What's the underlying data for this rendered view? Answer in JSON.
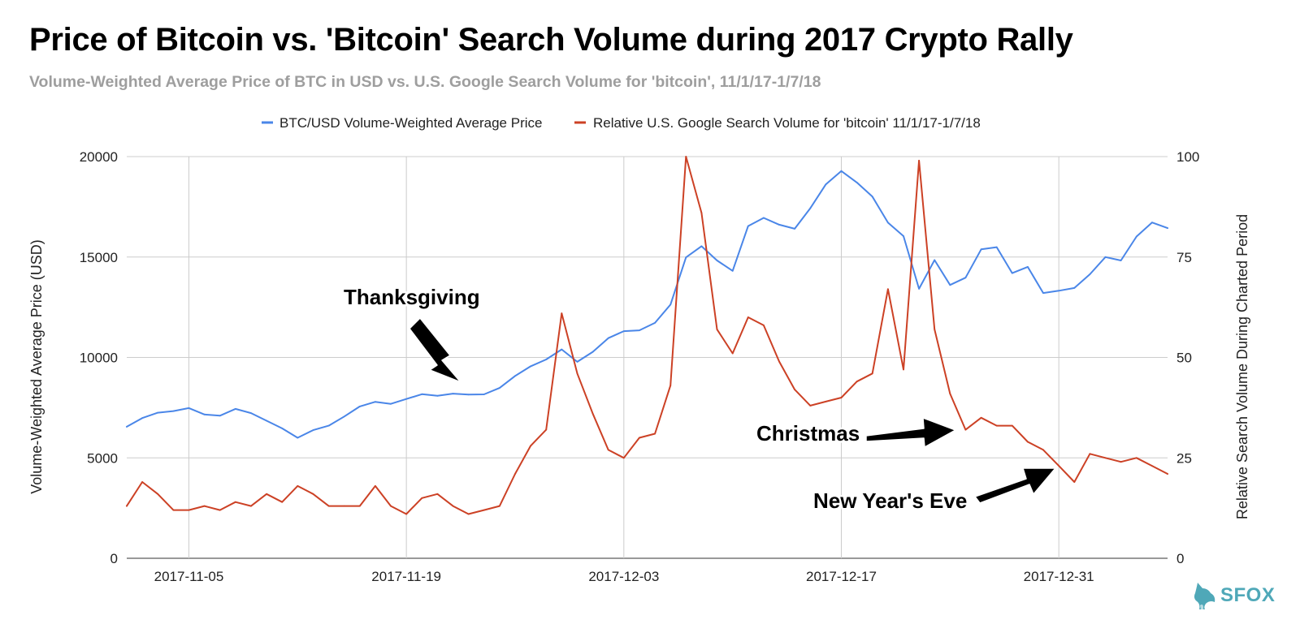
{
  "chart_data": {
    "type": "line",
    "title": "Price of Bitcoin vs. 'Bitcoin' Search Volume during 2017 Crypto Rally",
    "subtitle": "Volume-Weighted Average Price of BTC in USD vs. U.S. Google Search Volume for 'bitcoin', 11/1/17-1/7/18",
    "y_left_label": "Volume-Weighted Average Price (USD)",
    "y_right_label": "Relative Search Volume During Charted Period",
    "y_left_range": [
      0,
      20000
    ],
    "y_right_range": [
      0,
      100
    ],
    "y_left_ticks": [
      "0",
      "5000",
      "10000",
      "15000",
      "20000"
    ],
    "y_right_ticks": [
      "0",
      "25",
      "50",
      "75",
      "100"
    ],
    "x_tick_labels": [
      "2017-11-05",
      "2017-11-19",
      "2017-12-03",
      "2017-12-17",
      "2017-12-31"
    ],
    "x_tick_dates": [
      "2017-11-05",
      "2017-11-19",
      "2017-12-03",
      "2017-12-17",
      "2017-12-31"
    ],
    "x_range": [
      "2017-11-01",
      "2018-01-07"
    ],
    "grid": true,
    "legend_position": "top",
    "dates": [
      "2017-11-01",
      "2017-11-02",
      "2017-11-03",
      "2017-11-04",
      "2017-11-05",
      "2017-11-06",
      "2017-11-07",
      "2017-11-08",
      "2017-11-09",
      "2017-11-10",
      "2017-11-11",
      "2017-11-12",
      "2017-11-13",
      "2017-11-14",
      "2017-11-15",
      "2017-11-16",
      "2017-11-17",
      "2017-11-18",
      "2017-11-19",
      "2017-11-20",
      "2017-11-21",
      "2017-11-22",
      "2017-11-23",
      "2017-11-24",
      "2017-11-25",
      "2017-11-26",
      "2017-11-27",
      "2017-11-28",
      "2017-11-29",
      "2017-11-30",
      "2017-12-01",
      "2017-12-02",
      "2017-12-03",
      "2017-12-04",
      "2017-12-05",
      "2017-12-06",
      "2017-12-07",
      "2017-12-08",
      "2017-12-09",
      "2017-12-10",
      "2017-12-11",
      "2017-12-12",
      "2017-12-13",
      "2017-12-14",
      "2017-12-15",
      "2017-12-16",
      "2017-12-17",
      "2017-12-18",
      "2017-12-19",
      "2017-12-20",
      "2017-12-21",
      "2017-12-22",
      "2017-12-23",
      "2017-12-24",
      "2017-12-25",
      "2017-12-26",
      "2017-12-27",
      "2017-12-28",
      "2017-12-29",
      "2017-12-30",
      "2017-12-31",
      "2018-01-01",
      "2018-01-02",
      "2018-01-03",
      "2018-01-04",
      "2018-01-05",
      "2018-01-06",
      "2018-01-07"
    ],
    "series": [
      {
        "name": "BTC/USD Volume-Weighted Average Price",
        "axis": "left",
        "color": "#4a86e8",
        "values": [
          6550,
          6980,
          7250,
          7330,
          7480,
          7160,
          7100,
          7440,
          7230,
          6850,
          6470,
          6000,
          6380,
          6600,
          7060,
          7560,
          7790,
          7690,
          7930,
          8170,
          8090,
          8200,
          8150,
          8160,
          8480,
          9080,
          9560,
          9900,
          10400,
          9780,
          10280,
          10960,
          11310,
          11350,
          11720,
          12630,
          14980,
          15540,
          14830,
          14310,
          16540,
          16950,
          16610,
          16410,
          17430,
          18620,
          19280,
          18710,
          18010,
          16710,
          16040,
          13420,
          14850,
          13610,
          13970,
          15380,
          15490,
          14200,
          14510,
          13210,
          13320,
          13460,
          14140,
          15000,
          14830,
          16020,
          16720,
          16440
        ]
      },
      {
        "name": "Relative U.S. Google Search Volume for 'bitcoin' 11/1/17-1/7/18",
        "axis": "right",
        "color": "#cc4125",
        "values": [
          13,
          19,
          16,
          12,
          12,
          13,
          12,
          14,
          13,
          16,
          14,
          18,
          16,
          13,
          13,
          13,
          18,
          13,
          11,
          15,
          16,
          13,
          11,
          12,
          13,
          21,
          28,
          32,
          61,
          46,
          36,
          27,
          25,
          30,
          31,
          43,
          100,
          86,
          57,
          51,
          60,
          58,
          49,
          42,
          38,
          39,
          40,
          44,
          46,
          67,
          47,
          99,
          57,
          41,
          32,
          35,
          33,
          33,
          29,
          27,
          23,
          19,
          26,
          25,
          24,
          25,
          23,
          21
        ]
      }
    ],
    "annotations": [
      "Thanksgiving",
      "Christmas",
      "New Year's Eve"
    ]
  },
  "logo": {
    "text": "SFOX",
    "color": "#4fa8b8"
  }
}
